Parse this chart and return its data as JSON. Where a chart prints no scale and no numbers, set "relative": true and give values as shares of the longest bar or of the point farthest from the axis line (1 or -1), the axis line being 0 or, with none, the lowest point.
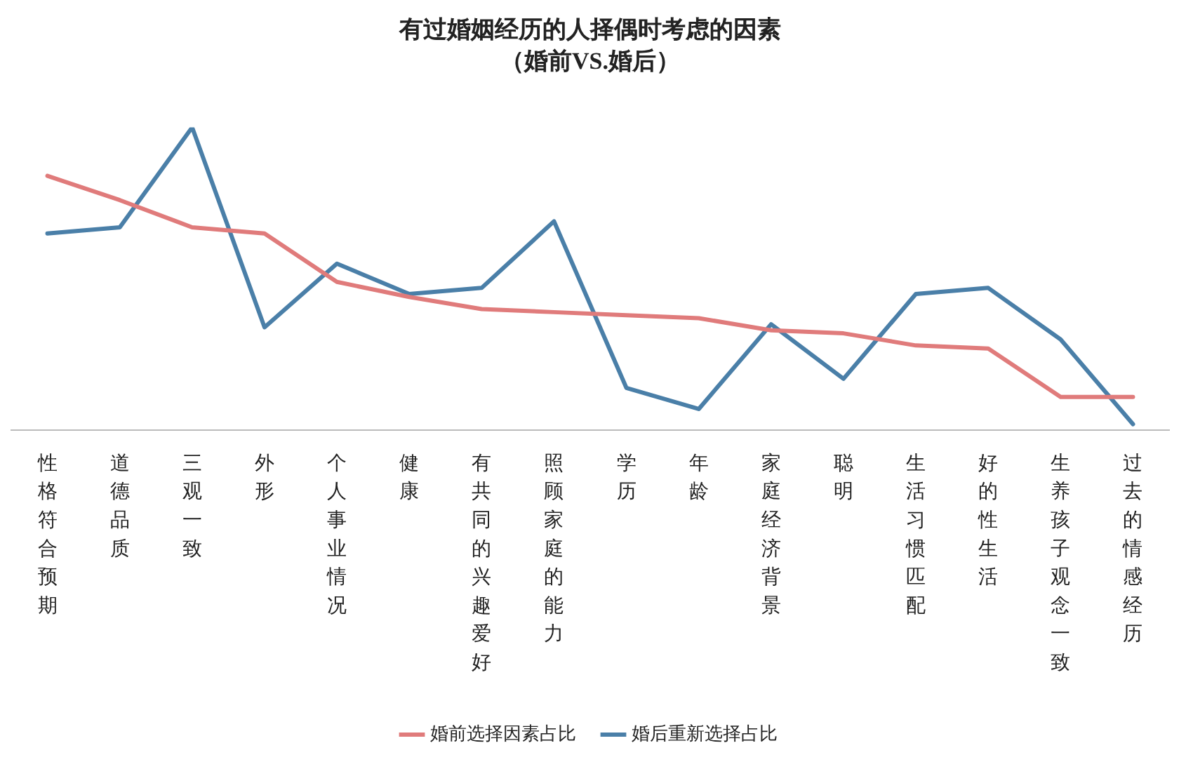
{
  "chart_data": {
    "type": "line",
    "title": "有过婚姻经历的人择偶时考虑的因素",
    "subtitle": "（婚前VS.婚后）",
    "relative": true,
    "categories": [
      "性格符合预期",
      "道德品质",
      "三观一致",
      "外形",
      "个人事业情况",
      "健康",
      "有共同的兴趣爱好",
      "照顾家庭的能力",
      "学历",
      "年龄",
      "家庭经济背景",
      "聪明",
      "生活习惯匹配",
      "好的性生活",
      "生养孩子观念一致",
      "过去的情感经历"
    ],
    "series": [
      {
        "name": "婚前选择因素占比",
        "color": "#e07b7b",
        "values": [
          0.84,
          0.76,
          0.67,
          0.65,
          0.49,
          0.44,
          0.4,
          0.39,
          0.38,
          0.37,
          0.33,
          0.32,
          0.28,
          0.27,
          0.11,
          0.11
        ]
      },
      {
        "name": "婚后重新选择占比",
        "color": "#4a7fa8",
        "values": [
          0.65,
          0.67,
          1,
          0.34,
          0.55,
          0.45,
          0.47,
          0.69,
          0.14,
          0.07,
          0.35,
          0.17,
          0.45,
          0.47,
          0.3,
          0.02
        ]
      }
    ],
    "grid": false,
    "legend": "bottom",
    "marker": "none",
    "line_style": "solid"
  }
}
